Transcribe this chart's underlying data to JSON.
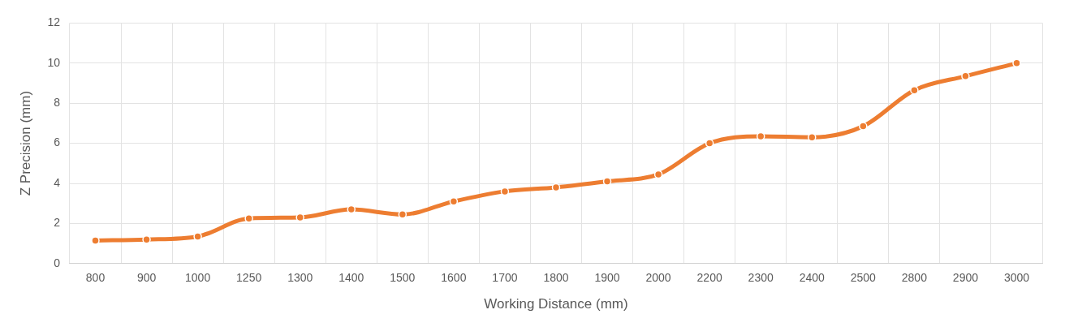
{
  "chart_data": {
    "type": "line",
    "xlabel": "Working Distance (mm)",
    "ylabel": "Z Precision (mm)",
    "categories": [
      "800",
      "900",
      "1000",
      "1250",
      "1300",
      "1400",
      "1500",
      "1600",
      "1700",
      "1800",
      "1900",
      "2000",
      "2200",
      "2300",
      "2400",
      "2500",
      "2800",
      "2900",
      "3000"
    ],
    "series": [
      {
        "color": "#ed7d31",
        "values": [
          1.15,
          1.2,
          1.35,
          2.25,
          2.3,
          2.7,
          2.45,
          3.1,
          3.6,
          3.8,
          4.1,
          4.45,
          6.0,
          6.35,
          6.3,
          6.85,
          8.65,
          9.35,
          10.0
        ]
      }
    ],
    "ylim": [
      0,
      12
    ],
    "yticks": [
      0,
      2,
      4,
      6,
      8,
      10,
      12
    ],
    "grid": true,
    "marker": "circle",
    "line_style": "solid",
    "legend": false
  }
}
